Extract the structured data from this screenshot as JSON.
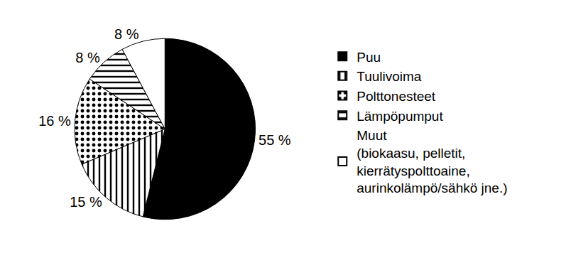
{
  "chart_data": {
    "type": "pie",
    "categories": [
      "Puu",
      "Tuulivoima",
      "Polttonesteet",
      "Lämpöpumput",
      "Muut\n(biokaasu, pelletit,\nkierrätyspolttoaine,\naurinkolämpö/sähkö jne.)"
    ],
    "values": [
      55,
      15,
      16,
      8,
      8
    ],
    "value_labels": [
      "55 %",
      "15 %",
      "16 %",
      "8 %",
      "8 %"
    ],
    "data_labels": true,
    "legend": "right",
    "colors": [
      "#000000",
      "#ffffff",
      "#ffffff",
      "#ffffff",
      "#ffffff"
    ]
  }
}
